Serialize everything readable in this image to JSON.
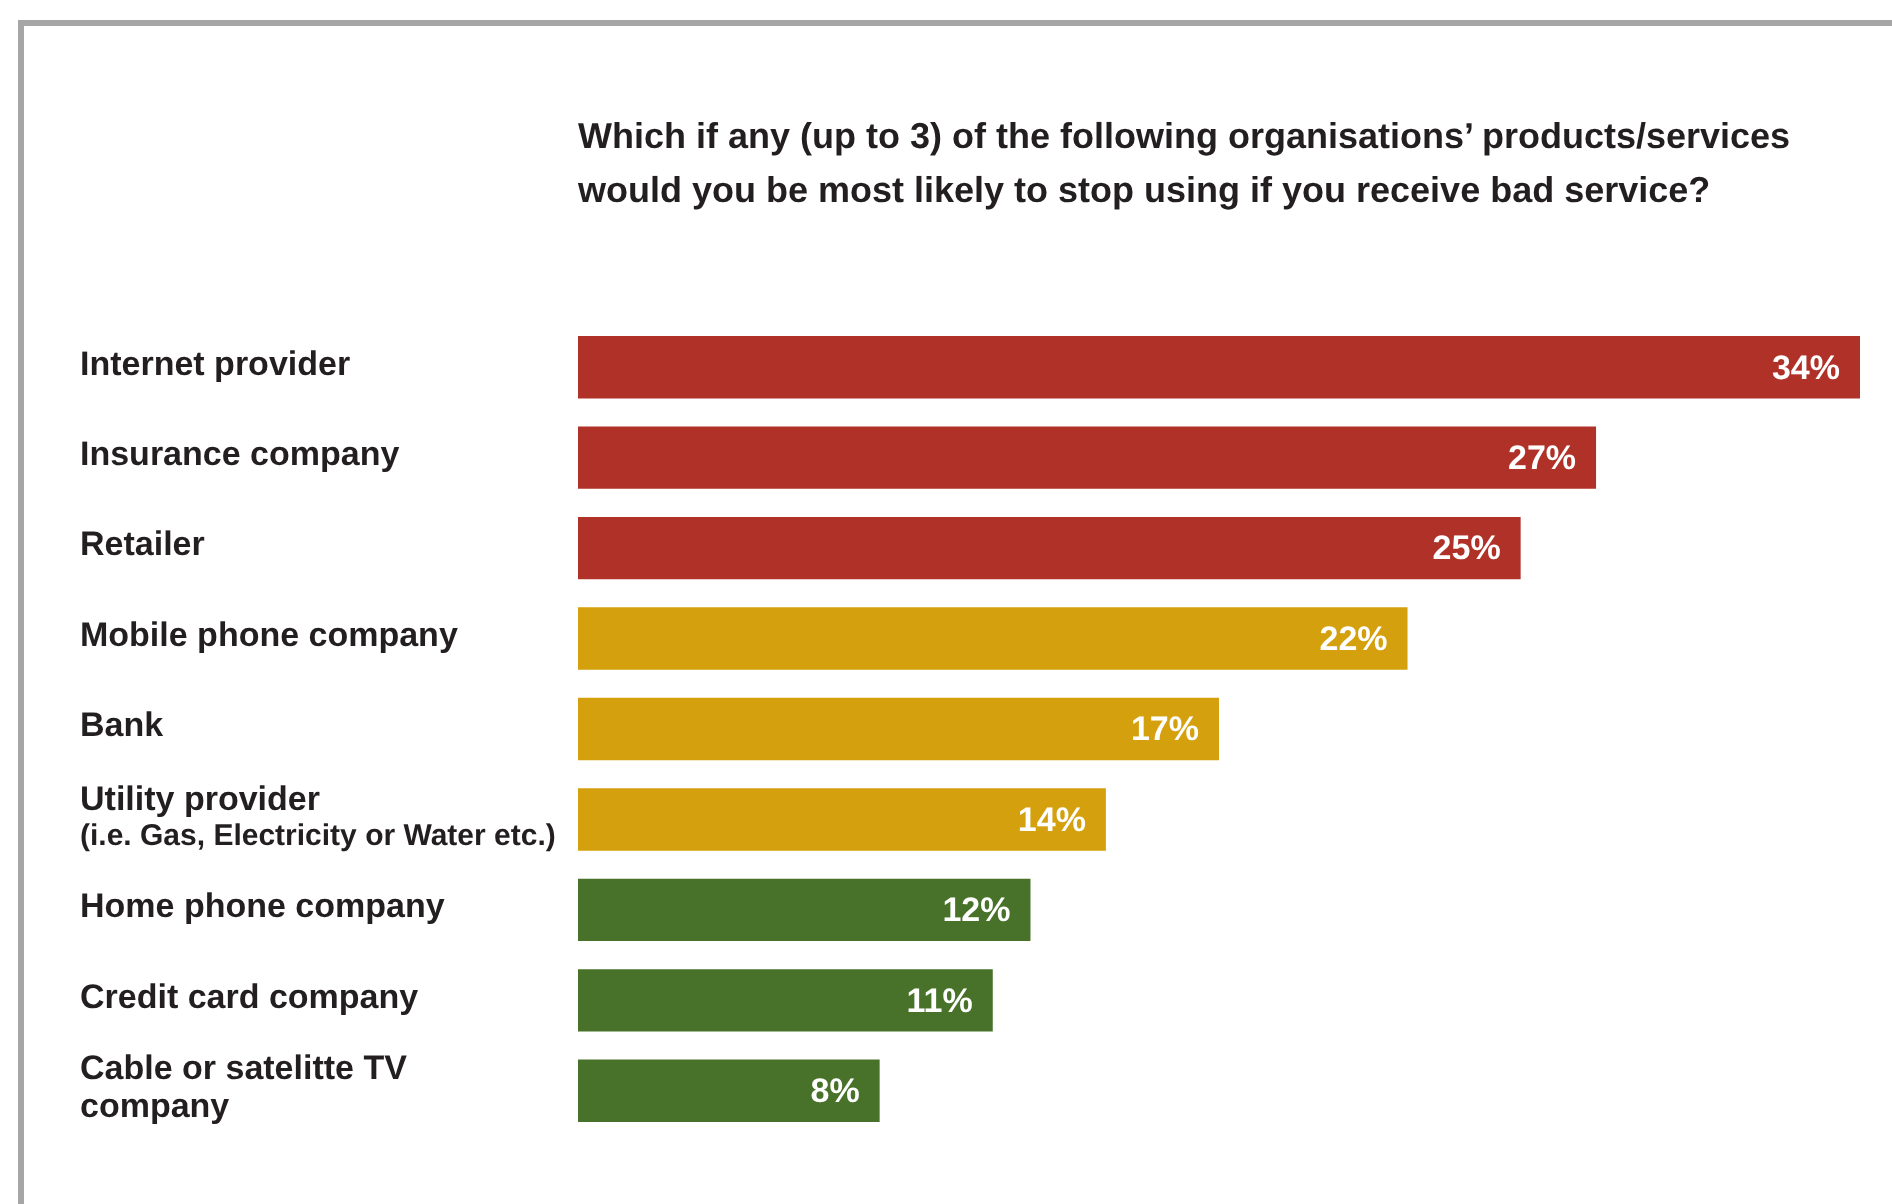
{
  "chart_data": {
    "type": "bar",
    "orientation": "horizontal",
    "title": "Which if any (up to 3) of the following organisations’ products/services would you be most likely to stop using if you receive bad service?",
    "categories": [
      "Internet provider",
      "Insurance company",
      "Retailer",
      "Mobile phone company",
      "Bank",
      "Utility provider\n(i.e. Gas, Electricity or Water etc.)",
      "Home phone company",
      "Credit card company",
      "Cable or satelitte TV\ncompany"
    ],
    "values": [
      34,
      27,
      25,
      22,
      17,
      14,
      12,
      11,
      8
    ],
    "colors": [
      "#b03127",
      "#b03127",
      "#b03127",
      "#d4a00e",
      "#d4a00e",
      "#d4a00e",
      "#48722a",
      "#48722a",
      "#48722a"
    ],
    "value_labels": [
      "34%",
      "27%",
      "25%",
      "22%",
      "17%",
      "14%",
      "12%",
      "11%",
      "8%"
    ],
    "xlim": [
      0,
      34
    ]
  }
}
